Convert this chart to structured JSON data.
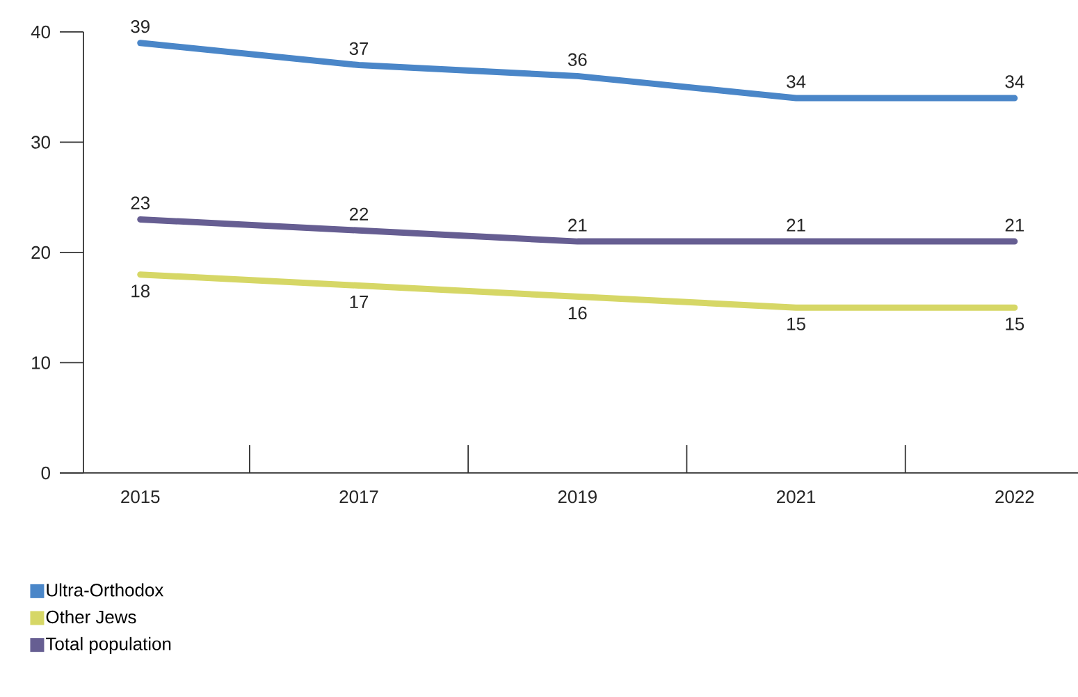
{
  "chart_data": {
    "type": "line",
    "categories": [
      "2015",
      "2017",
      "2019",
      "2021",
      "2022"
    ],
    "series": [
      {
        "name": "Ultra-Orthodox",
        "color": "#4a86c8",
        "values": [
          39,
          37,
          36,
          34,
          34
        ]
      },
      {
        "name": "Other Jews",
        "color": "#d6d766",
        "values": [
          18,
          17,
          16,
          15,
          15
        ]
      },
      {
        "name": "Total population",
        "color": "#665e92",
        "values": [
          23,
          22,
          21,
          21,
          21
        ]
      }
    ],
    "ylim": [
      0,
      40
    ],
    "yticks": [
      0,
      10,
      20,
      30,
      40
    ],
    "data_labels": true,
    "legend": "bottom left",
    "grid": false,
    "marker": "none",
    "line_style": "solid"
  }
}
